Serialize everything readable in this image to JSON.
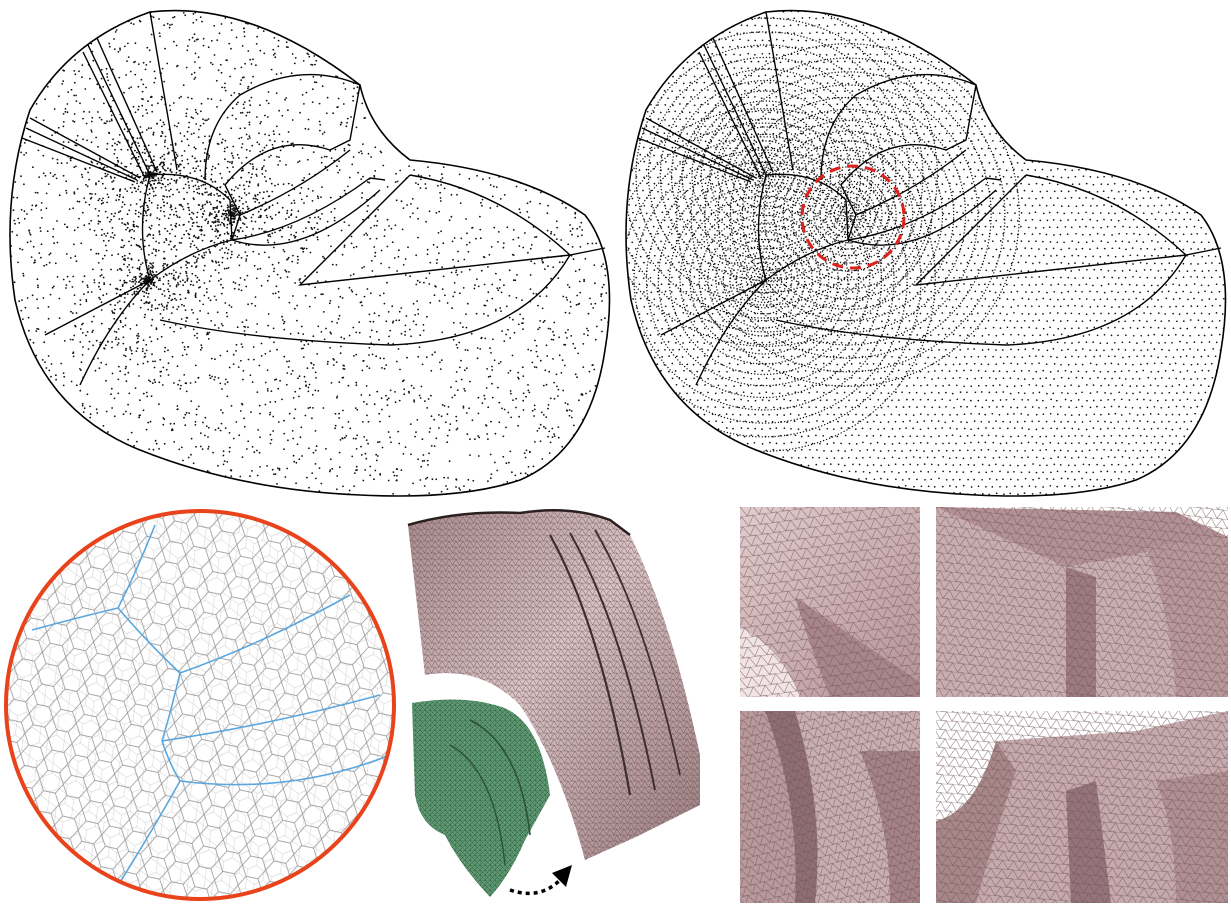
{
  "figure": {
    "panels": [
      {
        "id": "point-samples-2d",
        "style": "scattered-points"
      },
      {
        "id": "optimized-points-2d",
        "style": "regular-points",
        "highlight": "dashed-circle"
      },
      {
        "id": "voronoi-closeup",
        "style": "polygon-cells"
      },
      {
        "id": "volume-mesh-3d",
        "style": "tetrahedral-solid"
      },
      {
        "id": "mesh-detail-views",
        "count": 4
      }
    ],
    "colors": {
      "outline": "#000000",
      "dots": "#111111",
      "highlight_circle": "#e0201a",
      "closeup_border": "#e8431a",
      "voronoi_edges": "#8a8a8a",
      "feature_edges": "#5aa7e0",
      "solid_mesh": "#b7979a",
      "solid_mesh_light": "#ddc6c8",
      "cutout_mesh": "#5f9b74",
      "arrow": "#000000"
    }
  }
}
